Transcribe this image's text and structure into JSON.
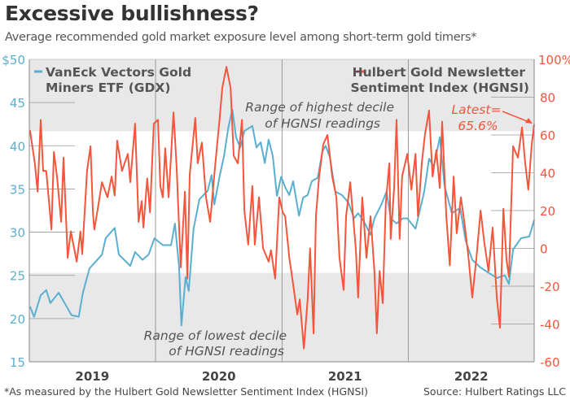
{
  "chart_data": {
    "type": "line",
    "title": "Excessive bullishness?",
    "subtitle": "Average recommended gold market exposure level among short-term gold timers*",
    "footnote": "*As measured by the Hulbert Gold Newsletter Sentiment Index (HGNSI)",
    "source": "Source: Hulbert Ratings LLC",
    "xlim": [
      "2019-01-01",
      "2022-12-31"
    ],
    "x_ticks": [
      "2019",
      "2020",
      "2021",
      "2022"
    ],
    "y_left": {
      "ylim": [
        15,
        50
      ],
      "ticks": [
        "$50",
        "45",
        "40",
        "35",
        "30",
        "25",
        "20",
        "15"
      ],
      "color": "#5aafd1"
    },
    "y_right": {
      "ylim": [
        -60,
        100
      ],
      "ticks": [
        "100%",
        "80",
        "60",
        "40",
        "20",
        "0",
        "-20",
        "-40",
        "-60"
      ],
      "color": "#f4553b"
    },
    "bands": [
      {
        "from": 62,
        "to": 100,
        "axis": "right",
        "label": [
          "Range of highest decile",
          "of HGNSI readings"
        ]
      },
      {
        "from": -60,
        "to": -13,
        "axis": "right",
        "label": [
          "Range of lowest decile",
          "of HGNSI readings"
        ]
      }
    ],
    "annotation": {
      "text": [
        "Latest=",
        "65.6%"
      ],
      "value": 65.6
    },
    "legend_placement": "top",
    "series": [
      {
        "name": "VanEck Vectors Gold Miners ETF (GDX)",
        "axis": "left",
        "color": "#5aafd1",
        "points": [
          [
            "2019-01-03",
            21.4
          ],
          [
            "2019-01-15",
            20.2
          ],
          [
            "2019-02-03",
            22.7
          ],
          [
            "2019-02-19",
            23.3
          ],
          [
            "2019-03-03",
            21.8
          ],
          [
            "2019-03-27",
            23
          ],
          [
            "2019-05-03",
            20.4
          ],
          [
            "2019-05-24",
            20.2
          ],
          [
            "2019-06-05",
            23
          ],
          [
            "2019-06-24",
            25.8
          ],
          [
            "2019-07-30",
            27.4
          ],
          [
            "2019-08-10",
            29.3
          ],
          [
            "2019-09-05",
            30.5
          ],
          [
            "2019-09-17",
            27.4
          ],
          [
            "2019-10-20",
            26.1
          ],
          [
            "2019-11-03",
            27.7
          ],
          [
            "2019-11-24",
            26.8
          ],
          [
            "2019-12-12",
            27.4
          ],
          [
            "2019-12-29",
            29.3
          ],
          [
            "2020-01-22",
            28.5
          ],
          [
            "2020-02-15",
            28.5
          ],
          [
            "2020-02-26",
            31
          ],
          [
            "2020-03-09",
            26
          ],
          [
            "2020-03-16",
            19.2
          ],
          [
            "2020-03-28",
            24.8
          ],
          [
            "2020-04-06",
            23.2
          ],
          [
            "2020-04-20",
            30.4
          ],
          [
            "2020-05-07",
            33.8
          ],
          [
            "2020-05-31",
            34.8
          ],
          [
            "2020-06-11",
            36.6
          ],
          [
            "2020-06-19",
            33.2
          ],
          [
            "2020-07-05",
            36.6
          ],
          [
            "2020-07-17",
            38.8
          ],
          [
            "2020-07-29",
            42
          ],
          [
            "2020-08-10",
            44.2
          ],
          [
            "2020-08-21",
            41
          ],
          [
            "2020-09-02",
            39.8
          ],
          [
            "2020-09-14",
            41.7
          ],
          [
            "2020-10-07",
            42.3
          ],
          [
            "2020-10-19",
            39.8
          ],
          [
            "2020-10-31",
            40.4
          ],
          [
            "2020-11-12",
            38
          ],
          [
            "2020-11-23",
            40.7
          ],
          [
            "2020-12-05",
            38.8
          ],
          [
            "2020-12-17",
            34.2
          ],
          [
            "2020-12-29",
            36.4
          ],
          [
            "2021-01-10",
            35.2
          ],
          [
            "2021-01-22",
            34.3
          ],
          [
            "2021-02-02",
            35.9
          ],
          [
            "2021-02-19",
            31.9
          ],
          [
            "2021-03-03",
            34
          ],
          [
            "2021-03-16",
            34.3
          ],
          [
            "2021-03-28",
            35.9
          ],
          [
            "2021-04-14",
            36.3
          ],
          [
            "2021-04-28",
            39.4
          ],
          [
            "2021-05-07",
            40
          ],
          [
            "2021-05-19",
            38.7
          ],
          [
            "2021-06-04",
            34.7
          ],
          [
            "2021-06-23",
            34.3
          ],
          [
            "2021-07-12",
            33.4
          ],
          [
            "2021-07-28",
            31.6
          ],
          [
            "2021-08-09",
            32.2
          ],
          [
            "2021-08-25",
            31.3
          ],
          [
            "2021-09-14",
            29.7
          ],
          [
            "2021-09-25",
            31.6
          ],
          [
            "2021-10-14",
            33.1
          ],
          [
            "2021-10-30",
            34.7
          ],
          [
            "2021-11-11",
            31.6
          ],
          [
            "2021-11-28",
            31
          ],
          [
            "2021-12-16",
            31.6
          ],
          [
            "2021-12-29",
            31.6
          ],
          [
            "2022-01-22",
            30.4
          ],
          [
            "2022-02-16",
            34.7
          ],
          [
            "2022-03-02",
            38.5
          ],
          [
            "2022-03-16",
            37.6
          ],
          [
            "2022-04-02",
            41
          ],
          [
            "2022-04-16",
            35.3
          ],
          [
            "2022-05-07",
            32.2
          ],
          [
            "2022-05-31",
            32.8
          ],
          [
            "2022-06-16",
            29
          ],
          [
            "2022-07-05",
            26.8
          ],
          [
            "2022-07-29",
            25.9
          ],
          [
            "2022-08-21",
            25.3
          ],
          [
            "2022-09-14",
            24.7
          ],
          [
            "2022-10-07",
            25
          ],
          [
            "2022-10-19",
            24
          ],
          [
            "2022-10-31",
            28
          ],
          [
            "2022-11-23",
            29.3
          ],
          [
            "2022-12-17",
            29.5
          ],
          [
            "2022-12-31",
            31.4
          ]
        ]
      },
      {
        "name": "Hulbert Gold Newsletter Sentiment Index (HGNSI)",
        "axis": "right",
        "color": "#f4553b",
        "points": [
          [
            "2019-01-03",
            62.6
          ],
          [
            "2019-01-17",
            45
          ],
          [
            "2019-01-25",
            30
          ],
          [
            "2019-02-03",
            68
          ],
          [
            "2019-02-10",
            41
          ],
          [
            "2019-02-19",
            41
          ],
          [
            "2019-03-06",
            10
          ],
          [
            "2019-03-13",
            51
          ],
          [
            "2019-03-22",
            38
          ],
          [
            "2019-04-03",
            14
          ],
          [
            "2019-04-10",
            48
          ],
          [
            "2019-04-22",
            -5
          ],
          [
            "2019-05-01",
            9
          ],
          [
            "2019-05-18",
            -7
          ],
          [
            "2019-05-29",
            9
          ],
          [
            "2019-06-03",
            -3
          ],
          [
            "2019-06-17",
            41
          ],
          [
            "2019-06-27",
            54
          ],
          [
            "2019-07-04",
            19
          ],
          [
            "2019-07-08",
            10
          ],
          [
            "2019-07-18",
            21
          ],
          [
            "2019-07-30",
            35
          ],
          [
            "2019-08-15",
            27
          ],
          [
            "2019-08-27",
            38
          ],
          [
            "2019-09-05",
            28
          ],
          [
            "2019-09-12",
            57
          ],
          [
            "2019-09-26",
            41
          ],
          [
            "2019-10-13",
            50
          ],
          [
            "2019-10-20",
            35
          ],
          [
            "2019-11-03",
            66
          ],
          [
            "2019-11-13",
            14
          ],
          [
            "2019-11-22",
            25
          ],
          [
            "2019-11-27",
            11
          ],
          [
            "2019-12-08",
            37
          ],
          [
            "2019-12-16",
            19
          ],
          [
            "2019-12-27",
            66
          ],
          [
            "2020-01-08",
            68
          ],
          [
            "2020-01-15",
            33
          ],
          [
            "2020-01-22",
            27
          ],
          [
            "2020-01-29",
            53
          ],
          [
            "2020-02-08",
            27
          ],
          [
            "2020-02-22",
            72
          ],
          [
            "2020-03-02",
            43
          ],
          [
            "2020-03-14",
            -10
          ],
          [
            "2020-03-26",
            30
          ],
          [
            "2020-04-02",
            -16
          ],
          [
            "2020-04-09",
            39
          ],
          [
            "2020-04-25",
            69
          ],
          [
            "2020-05-02",
            45
          ],
          [
            "2020-05-14",
            56
          ],
          [
            "2020-05-26",
            27
          ],
          [
            "2020-06-07",
            14
          ],
          [
            "2020-06-19",
            39
          ],
          [
            "2020-07-05",
            70
          ],
          [
            "2020-07-12",
            85
          ],
          [
            "2020-07-24",
            96
          ],
          [
            "2020-08-05",
            85
          ],
          [
            "2020-08-14",
            49
          ],
          [
            "2020-08-26",
            45
          ],
          [
            "2020-09-07",
            68
          ],
          [
            "2020-09-14",
            20
          ],
          [
            "2020-09-25",
            2
          ],
          [
            "2020-10-07",
            33
          ],
          [
            "2020-10-14",
            2
          ],
          [
            "2020-10-26",
            27
          ],
          [
            "2020-11-07",
            0
          ],
          [
            "2020-11-23",
            -7
          ],
          [
            "2020-11-30",
            -1
          ],
          [
            "2020-12-12",
            -16
          ],
          [
            "2020-12-24",
            27
          ],
          [
            "2021-01-03",
            19
          ],
          [
            "2021-01-10",
            17
          ],
          [
            "2021-01-22",
            -5
          ],
          [
            "2021-02-02",
            -19
          ],
          [
            "2021-02-14",
            -35
          ],
          [
            "2021-02-21",
            -27
          ],
          [
            "2021-03-05",
            -53
          ],
          [
            "2021-03-16",
            -27
          ],
          [
            "2021-03-23",
            0
          ],
          [
            "2021-04-02",
            -45
          ],
          [
            "2021-04-09",
            17
          ],
          [
            "2021-04-18",
            38
          ],
          [
            "2021-04-30",
            55
          ],
          [
            "2021-05-12",
            60
          ],
          [
            "2021-05-26",
            38
          ],
          [
            "2021-06-07",
            27
          ],
          [
            "2021-06-16",
            -5
          ],
          [
            "2021-06-28",
            -22
          ],
          [
            "2021-07-05",
            17
          ],
          [
            "2021-07-17",
            35
          ],
          [
            "2021-08-02",
            0
          ],
          [
            "2021-08-09",
            -26
          ],
          [
            "2021-08-21",
            27
          ],
          [
            "2021-09-02",
            -5
          ],
          [
            "2021-09-14",
            17
          ],
          [
            "2021-09-25",
            -12
          ],
          [
            "2021-10-02",
            -45
          ],
          [
            "2021-10-10",
            -12
          ],
          [
            "2021-10-19",
            -29
          ],
          [
            "2021-10-28",
            24
          ],
          [
            "2021-11-07",
            45
          ],
          [
            "2021-11-11",
            5
          ],
          [
            "2021-11-21",
            32
          ],
          [
            "2021-11-28",
            68
          ],
          [
            "2021-12-07",
            5
          ],
          [
            "2021-12-14",
            38
          ],
          [
            "2021-12-29",
            50
          ],
          [
            "2022-01-10",
            31
          ],
          [
            "2022-01-22",
            50
          ],
          [
            "2022-01-29",
            17
          ],
          [
            "2022-02-09",
            45
          ],
          [
            "2022-02-18",
            60
          ],
          [
            "2022-03-02",
            73
          ],
          [
            "2022-03-12",
            38
          ],
          [
            "2022-03-23",
            52
          ],
          [
            "2022-04-02",
            32
          ],
          [
            "2022-04-09",
            67
          ],
          [
            "2022-04-21",
            17
          ],
          [
            "2022-05-01",
            -9
          ],
          [
            "2022-05-12",
            38
          ],
          [
            "2022-05-21",
            8
          ],
          [
            "2022-06-02",
            27
          ],
          [
            "2022-06-12",
            14
          ],
          [
            "2022-06-23",
            -3
          ],
          [
            "2022-07-05",
            -26
          ],
          [
            "2022-07-17",
            -5
          ],
          [
            "2022-07-29",
            20
          ],
          [
            "2022-08-09",
            3
          ],
          [
            "2022-08-21",
            -12
          ],
          [
            "2022-09-02",
            11
          ],
          [
            "2022-09-14",
            -26
          ],
          [
            "2022-09-23",
            -42
          ],
          [
            "2022-10-03",
            21
          ],
          [
            "2022-10-12",
            -6
          ],
          [
            "2022-10-19",
            -15
          ],
          [
            "2022-10-31",
            54
          ],
          [
            "2022-11-14",
            48
          ],
          [
            "2022-11-26",
            64
          ],
          [
            "2022-12-05",
            45
          ],
          [
            "2022-12-14",
            31
          ],
          [
            "2022-12-24",
            55
          ],
          [
            "2022-12-31",
            65.6
          ]
        ]
      }
    ]
  },
  "legend": {
    "gdx": [
      "VanEck Vectors Gold",
      "Miners ETF (GDX)"
    ],
    "hgnsi": [
      "Hulbert Gold Newsletter",
      "Sentiment Index (HGNSI)"
    ]
  }
}
